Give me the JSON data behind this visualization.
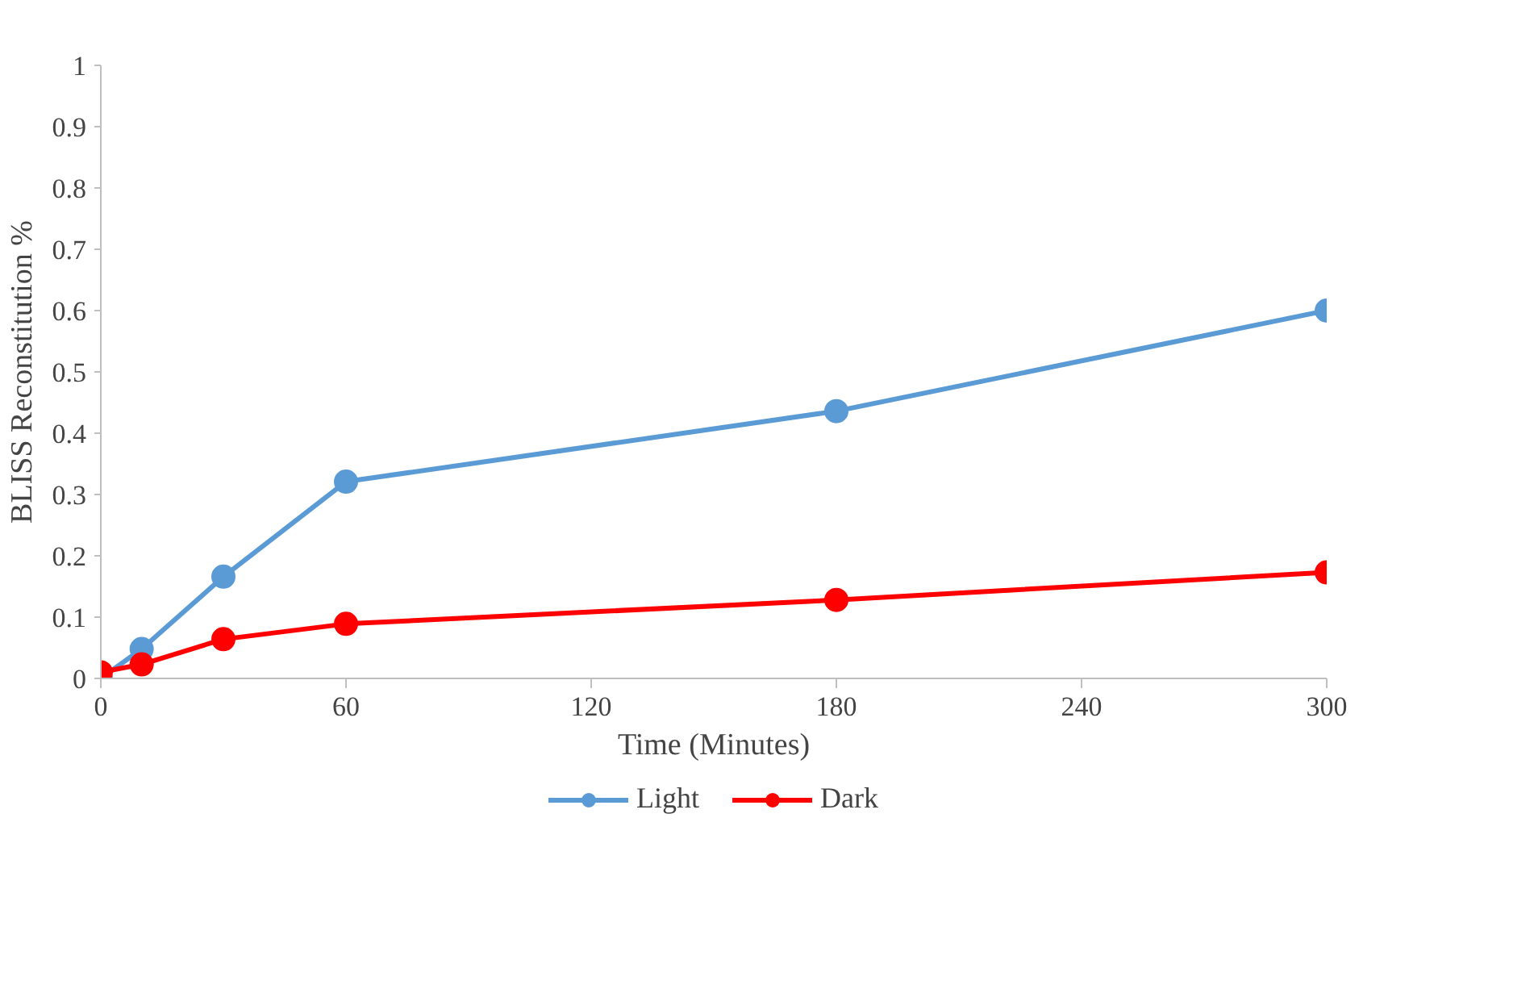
{
  "chart_data": {
    "type": "line",
    "xlabel": "Time (Minutes)",
    "ylabel": "BLISS Reconstitution %",
    "x": [
      0,
      10,
      30,
      60,
      180,
      300
    ],
    "series": [
      {
        "name": "Light",
        "color": "#5b9bd5",
        "values": [
          0,
          0.048,
          0.166,
          0.321,
          0.436,
          0.6
        ]
      },
      {
        "name": "Dark",
        "color": "#ff0000",
        "values": [
          0.01,
          0.023,
          0.064,
          0.089,
          0.128,
          0.173
        ]
      }
    ],
    "xlim": [
      0,
      300
    ],
    "xticks": [
      0,
      60,
      120,
      180,
      240,
      300
    ],
    "ylim": [
      0,
      1
    ],
    "yticks": [
      0,
      0.1,
      0.2,
      0.3,
      0.4,
      0.5,
      0.6,
      0.7,
      0.8,
      0.9,
      1
    ],
    "grid": false,
    "legend": "bottom",
    "marker": "circle",
    "line_style": "solid"
  }
}
